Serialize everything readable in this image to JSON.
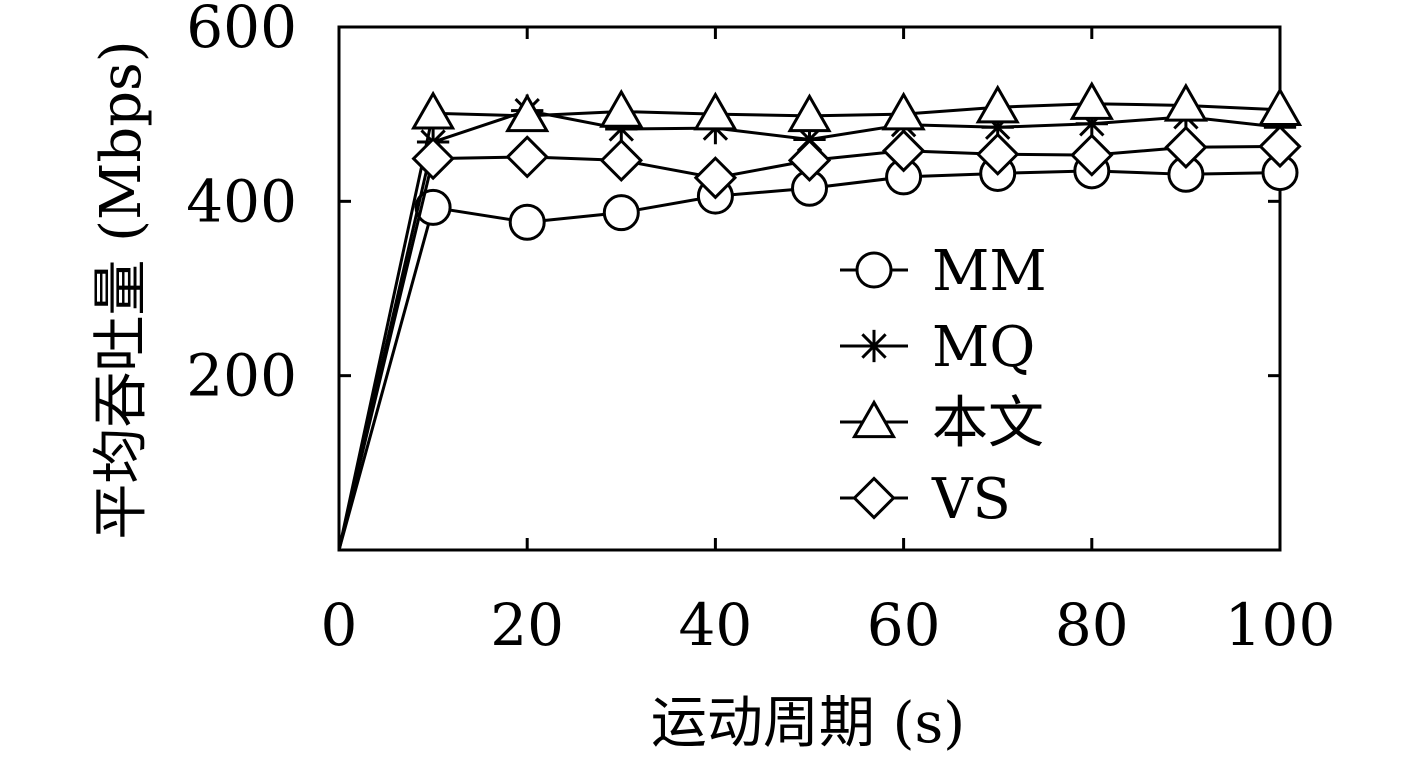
{
  "chart_data": {
    "type": "line",
    "title": "",
    "xlabel": "运动周期 (s)",
    "ylabel": "平均吞吐量 (Mbps)",
    "xlim": [
      0,
      100
    ],
    "ylim": [
      0,
      600
    ],
    "xticks": [
      0,
      20,
      40,
      60,
      80,
      100
    ],
    "yticks": [
      200,
      400,
      600
    ],
    "grid": false,
    "legend_position": "center-right",
    "x": [
      0,
      10,
      20,
      30,
      40,
      50,
      60,
      70,
      80,
      90,
      100
    ],
    "series": [
      {
        "name": "MM",
        "marker": "circle",
        "values": [
          0,
          393,
          376,
          387,
          406,
          415,
          428,
          432,
          435,
          431,
          433
        ]
      },
      {
        "name": "MQ",
        "marker": "star",
        "values": [
          0,
          468,
          504,
          483,
          484,
          471,
          488,
          485,
          489,
          497,
          485
        ]
      },
      {
        "name": "本文",
        "marker": "triangle",
        "values": [
          0,
          501,
          498,
          503,
          500,
          498,
          500,
          508,
          512,
          510,
          505
        ]
      },
      {
        "name": "VS",
        "marker": "diamond",
        "values": [
          0,
          449,
          451,
          447,
          427,
          447,
          458,
          454,
          453,
          462,
          463
        ]
      }
    ]
  }
}
